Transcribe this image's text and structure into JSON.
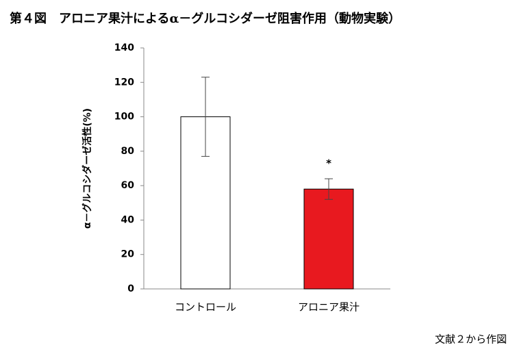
{
  "chart_data": {
    "type": "bar",
    "title": "第４図　アロニア果汁によるα－グルコシダーゼ阻害作用（動物実験）",
    "y_label": "α－グルコシダーゼ活性(%)",
    "categories": [
      "コントロール",
      "アロニア果汁"
    ],
    "values": [
      100,
      58
    ],
    "errors": [
      23,
      6
    ],
    "colors": [
      "#ffffff",
      "#e8191f"
    ],
    "annotations": [
      {
        "category": 1,
        "text": "*"
      }
    ],
    "source": "文献２から作図",
    "ylim": [
      0,
      140
    ],
    "yticks": [
      0,
      20,
      40,
      60,
      80,
      100,
      120,
      140
    ]
  }
}
